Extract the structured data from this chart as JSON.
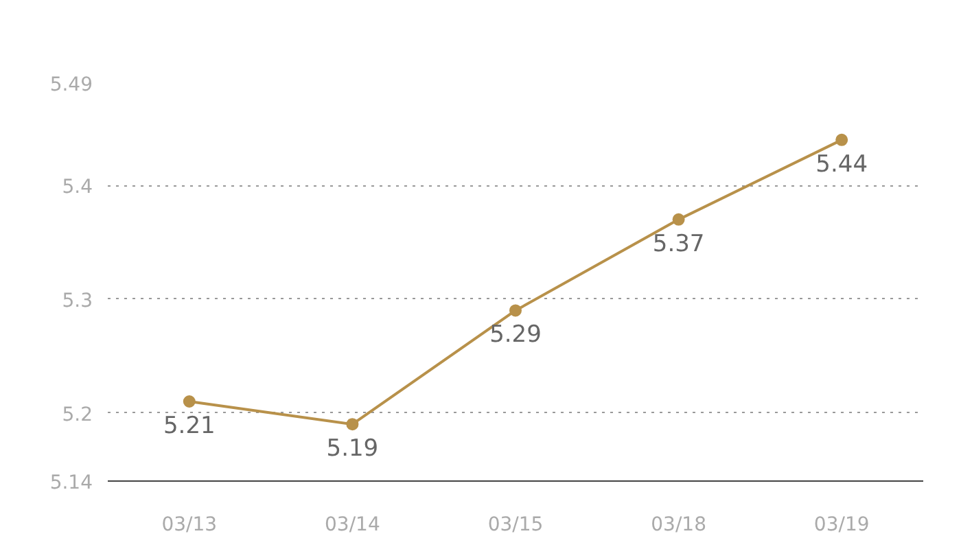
{
  "chart_data": {
    "type": "line",
    "categories": [
      "03/13",
      "03/14",
      "03/15",
      "03/18",
      "03/19"
    ],
    "series": [
      {
        "color": "#b8914a",
        "values": [
          5.21,
          5.19,
          5.29,
          5.37,
          5.44
        ]
      }
    ],
    "ylim": [
      5.14,
      5.49
    ],
    "yticks": [
      5.14,
      5.2,
      5.3,
      5.4,
      5.49
    ],
    "grid": "y",
    "marker": "circle",
    "line_style": "solid",
    "data_labels": true
  }
}
